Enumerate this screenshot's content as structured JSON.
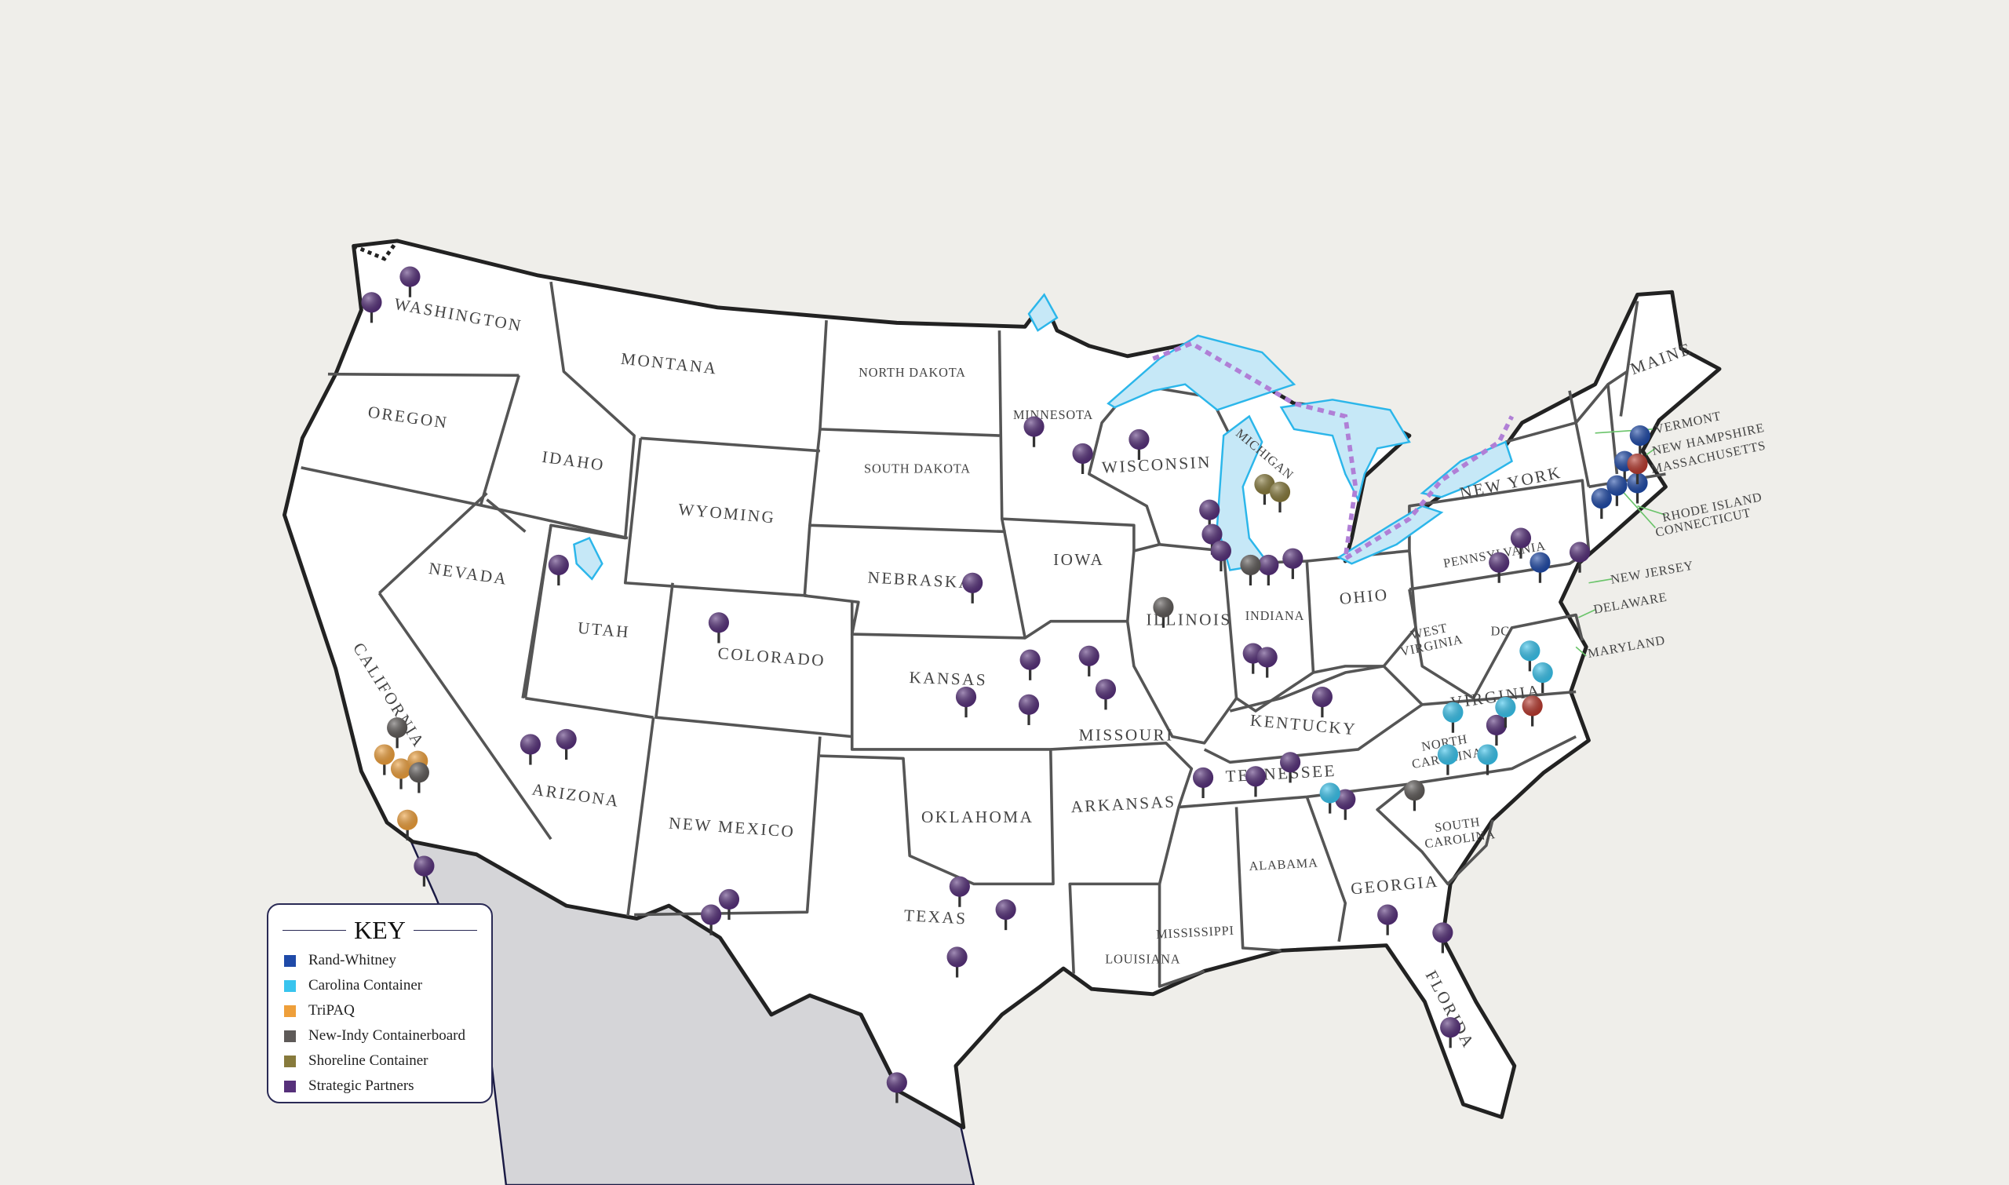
{
  "key": {
    "title": "KEY",
    "items": [
      {
        "label": "Rand-Whitney",
        "color": "#1f4aa8"
      },
      {
        "label": "Carolina Container",
        "color": "#38c4ee"
      },
      {
        "label": "TriPAQ",
        "color": "#ee9f3a"
      },
      {
        "label": "New-Indy Containerboard",
        "color": "#5e5a58"
      },
      {
        "label": "Shoreline Container",
        "color": "#877a3c"
      },
      {
        "label": "Strategic Partners",
        "color": "#56307a"
      }
    ]
  },
  "unlisted_pin_color": "#b8392e",
  "colors": {
    "land": "#ffffff",
    "background": "#efeeea",
    "mexico": "#d5d5d8",
    "water": "#c6e8f7",
    "water_outline": "#2bb6ea",
    "route": "#b07fd6"
  },
  "states": [
    "WASHINGTON",
    "OREGON",
    "IDAHO",
    "MONTANA",
    "NORTH DAKOTA",
    "SOUTH DAKOTA",
    "WYOMING",
    "NEVADA",
    "UTAH",
    "COLORADO",
    "NEBRASKA",
    "KANSAS",
    "CALIFORNIA",
    "ARIZONA",
    "NEW MEXICO",
    "OKLAHOMA",
    "TEXAS",
    "MINNESOTA",
    "WISCONSIN",
    "MICHIGAN",
    "IOWA",
    "ILLINOIS",
    "INDIANA",
    "OHIO",
    "MISSOURI",
    "ARKANSAS",
    "KENTUCKY",
    "TENNESSEE",
    "MISSISSIPPI",
    "ALABAMA",
    "LOUISIANA",
    "GEORGIA",
    "FLORIDA",
    "SOUTH",
    "CAROLINA",
    "NORTH",
    "CAROLINA",
    "VIRGINIA",
    "WEST",
    "VIRGINIA",
    "DC",
    "PENNSYLVANIA",
    "NEW YORK",
    "MAINE",
    "VERMONT",
    "NEW HAMPSHIRE",
    "MASSACHUSETTS",
    "RHODE ISLAND",
    "CONNECTICUT",
    "NEW JERSEY",
    "DELAWARE",
    "MARYLAND"
  ]
}
